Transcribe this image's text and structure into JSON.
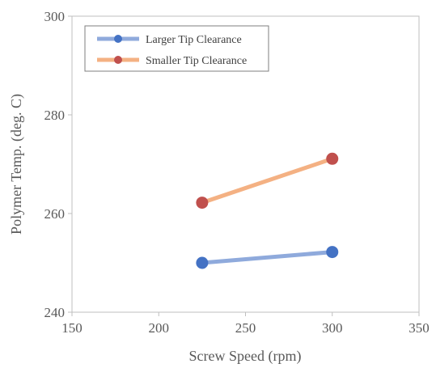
{
  "chart_data": {
    "type": "line",
    "title": "",
    "xlabel": "Screw Speed (rpm)",
    "ylabel": "Polymer Temp. (deg. C)",
    "xlim": [
      150,
      350
    ],
    "ylim": [
      240,
      300
    ],
    "xticks": [
      150,
      200,
      250,
      300,
      350
    ],
    "yticks": [
      240,
      260,
      280,
      300
    ],
    "grid": false,
    "legend_position": "top-left",
    "series": [
      {
        "name": "Larger Tip Clearance",
        "color": "#4472C4",
        "line_color": "#8FAADC",
        "x": [
          225,
          300
        ],
        "y": [
          250.0,
          252.2
        ]
      },
      {
        "name": "Smaller Tip Clearance",
        "color": "#C0504D",
        "line_color": "#F4B183",
        "x": [
          225,
          300
        ],
        "y": [
          262.2,
          271.1
        ]
      }
    ]
  }
}
